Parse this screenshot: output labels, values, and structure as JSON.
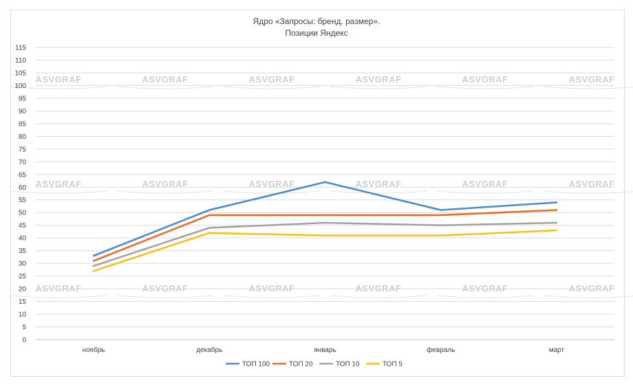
{
  "chart_data": {
    "type": "line",
    "title": "Ядро «Запросы: бренд. размер».",
    "subtitle": "Позиции Яндекс",
    "xlabel": "",
    "ylabel": "",
    "categories": [
      "ноябрь",
      "декабрь",
      "январь",
      "февраль",
      "март"
    ],
    "yticks": [
      "0",
      "5",
      "10",
      "15",
      "20",
      "25",
      "30",
      "35",
      "40",
      "45",
      "50",
      "55",
      "60",
      "65",
      "70",
      "75",
      "80",
      "85",
      "90",
      "95",
      "100",
      "105",
      "110",
      "115"
    ],
    "ylim": [
      0,
      115
    ],
    "grid": true,
    "legend_position": "bottom",
    "series": [
      {
        "name": "ТОП 100",
        "color": "#4a8ccf",
        "values": [
          33,
          51,
          62,
          51,
          54
        ]
      },
      {
        "name": "ТОП 20",
        "color": "#ee6a1f",
        "values": [
          31,
          49,
          49,
          49,
          51
        ]
      },
      {
        "name": "ТОП 10",
        "color": "#a3a3a3",
        "values": [
          29,
          44,
          46,
          45,
          46
        ]
      },
      {
        "name": "ТОП 5",
        "color": "#fbbf11",
        "values": [
          27,
          42,
          41,
          41,
          43
        ]
      }
    ],
    "watermark": "ASVGRAF"
  }
}
